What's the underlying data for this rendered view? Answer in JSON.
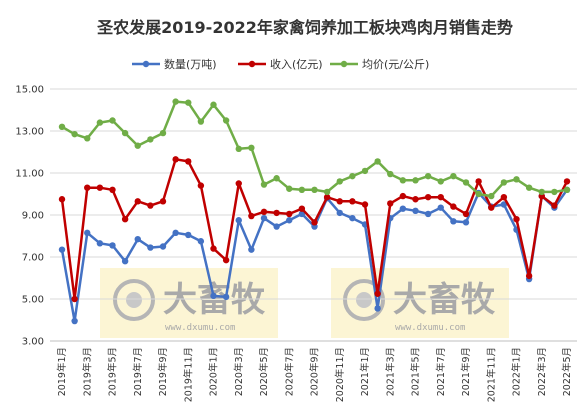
{
  "chart_data": {
    "type": "line",
    "title": "圣农发展2019-2022年家禽饲养加工板块鸡肉月销售走势",
    "xlabel": "",
    "ylabel": "",
    "ylim": [
      3.0,
      15.0
    ],
    "yticks": [
      "3.00",
      "5.00",
      "7.00",
      "9.00",
      "11.00",
      "13.00",
      "15.00"
    ],
    "grid": true,
    "legend_position": "top",
    "xtick_labels": [
      "2019年1月",
      "2019年3月",
      "2019年5月",
      "2019年7月",
      "2019年9月",
      "2019年11月",
      "2020年1月",
      "2020年3月",
      "2020年5月",
      "2020年7月",
      "2020年9月",
      "2020年11月",
      "2021年1月",
      "2021年3月",
      "2021年5月",
      "2021年7月",
      "2021年9月",
      "2021年11月",
      "2022年1月",
      "2022年3月",
      "2022年5月"
    ],
    "x": [
      "2019年1月",
      "2019年2月",
      "2019年3月",
      "2019年4月",
      "2019年5月",
      "2019年6月",
      "2019年7月",
      "2019年8月",
      "2019年9月",
      "2019年10月",
      "2019年11月",
      "2019年12月",
      "2020年1月",
      "2020年2月",
      "2020年3月",
      "2020年4月",
      "2020年5月",
      "2020年6月",
      "2020年7月",
      "2020年8月",
      "2020年9月",
      "2020年10月",
      "2020年11月",
      "2020年12月",
      "2021年1月",
      "2021年2月",
      "2021年3月",
      "2021年4月",
      "2021年5月",
      "2021年6月",
      "2021年7月",
      "2021年8月",
      "2021年9月",
      "2021年10月",
      "2021年11月",
      "2021年12月",
      "2022年1月",
      "2022年2月",
      "2022年3月",
      "2022年4月",
      "2022年5月"
    ],
    "series": [
      {
        "name": "数量(万吨)",
        "color": "#4472c4",
        "values": [
          7.35,
          3.95,
          8.15,
          7.65,
          7.55,
          6.8,
          7.85,
          7.45,
          7.5,
          8.15,
          8.05,
          7.75,
          5.15,
          5.1,
          8.75,
          7.35,
          8.85,
          8.45,
          8.75,
          9.05,
          8.45,
          9.8,
          9.1,
          8.85,
          8.55,
          4.55,
          8.85,
          9.3,
          9.2,
          9.05,
          9.35,
          8.7,
          8.65,
          10.05,
          9.4,
          9.5,
          8.3,
          5.95,
          9.9,
          9.35,
          10.2
        ]
      },
      {
        "name": "收入(亿元)",
        "color": "#c00000",
        "values": [
          9.75,
          5.0,
          10.3,
          10.3,
          10.2,
          8.8,
          9.65,
          9.45,
          9.65,
          11.65,
          11.55,
          10.4,
          7.4,
          6.85,
          10.5,
          8.95,
          9.15,
          9.1,
          9.05,
          9.3,
          8.65,
          9.85,
          9.65,
          9.65,
          9.5,
          5.25,
          9.55,
          9.9,
          9.75,
          9.85,
          9.85,
          9.4,
          9.05,
          10.6,
          9.35,
          9.85,
          8.8,
          6.1,
          9.9,
          9.45,
          10.6
        ]
      },
      {
        "name": "均价(元/公斤)",
        "color": "#70ad47",
        "values": [
          13.2,
          12.85,
          12.65,
          13.4,
          13.5,
          12.9,
          12.3,
          12.6,
          12.9,
          14.4,
          14.35,
          13.45,
          14.25,
          13.5,
          12.15,
          12.2,
          10.45,
          10.75,
          10.25,
          10.2,
          10.2,
          10.1,
          10.6,
          10.85,
          11.1,
          11.55,
          10.95,
          10.65,
          10.65,
          10.85,
          10.6,
          10.85,
          10.55,
          10.0,
          9.9,
          10.55,
          10.7,
          10.3,
          10.1,
          10.1,
          10.2
        ]
      }
    ]
  },
  "watermark": {
    "brand": "大畜牧",
    "url": "www.dxumu.com"
  }
}
